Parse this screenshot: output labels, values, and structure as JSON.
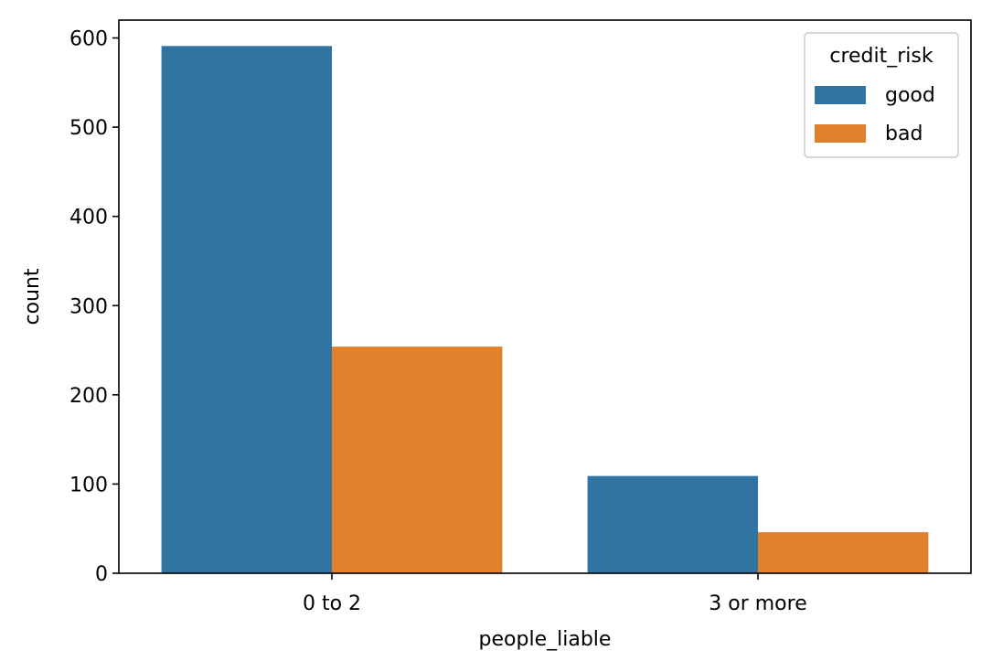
{
  "chart_data": {
    "type": "bar",
    "title": "",
    "xlabel": "people_liable",
    "ylabel": "count",
    "categories": [
      "0 to 2",
      "3 or more"
    ],
    "series": [
      {
        "name": "good",
        "values": [
          591,
          109
        ],
        "color": "#3274a1"
      },
      {
        "name": "bad",
        "values": [
          254,
          46
        ],
        "color": "#e1812c"
      }
    ],
    "ylim": [
      0,
      620
    ],
    "yticks": [
      0,
      100,
      200,
      300,
      400,
      500,
      600
    ],
    "legend": {
      "title": "credit_risk",
      "placement": "top-right"
    },
    "grid": false
  }
}
